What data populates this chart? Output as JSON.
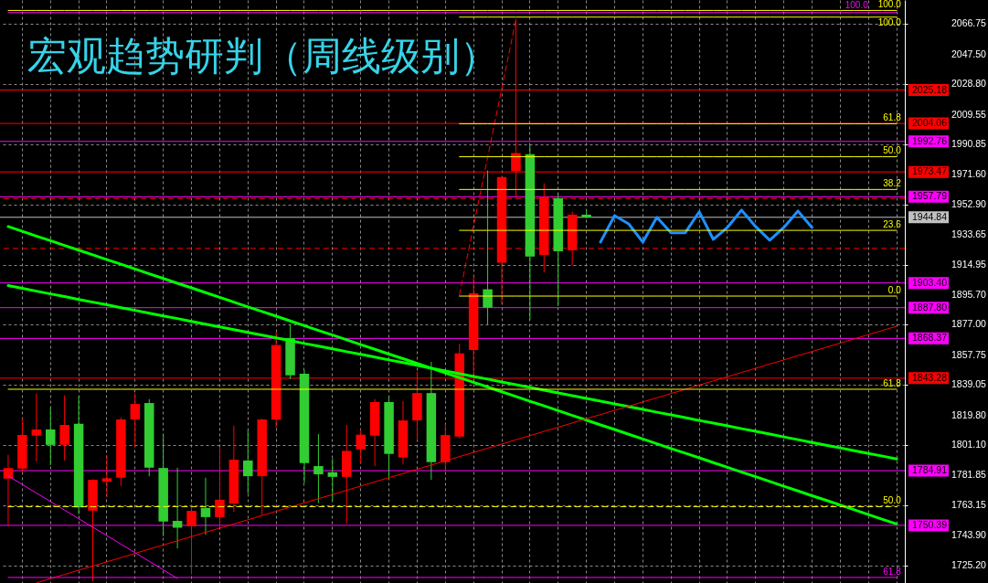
{
  "chart_data": {
    "type": "candlestick",
    "title": "宏观趋势研判（周线级别）",
    "categories": [
      null,
      null,
      null,
      null,
      null,
      null,
      null,
      null,
      null,
      null,
      null,
      null,
      null,
      null,
      null,
      null,
      null,
      null,
      null,
      null,
      null,
      null,
      null,
      null,
      null,
      null,
      null,
      null,
      null,
      null,
      null,
      null,
      null,
      null,
      null,
      null,
      null,
      null,
      null,
      null,
      null,
      null,
      null,
      null,
      null,
      null,
      null,
      null,
      null,
      null,
      null,
      null,
      null,
      null,
      null,
      null,
      null,
      null,
      null,
      null,
      null,
      null,
      null,
      null
    ],
    "ohlc": [
      [
        1779.9,
        1794.9,
        1749.9,
        1786.6
      ],
      [
        1786.2,
        1818.0,
        1783.9,
        1807.4
      ],
      [
        1807.0,
        1833.6,
        1790.7,
        1810.9
      ],
      [
        1810.9,
        1824.7,
        1788.4,
        1801.2
      ],
      [
        1801.2,
        1832.4,
        1791.3,
        1813.8
      ],
      [
        1814.5,
        1831.7,
        1757.4,
        1761.8
      ],
      [
        1759.7,
        1779.5,
        1715.0,
        1779.1
      ],
      [
        1777.9,
        1794.6,
        1768.2,
        1780.1
      ],
      [
        1780.5,
        1818.5,
        1775.3,
        1817.2
      ],
      [
        1817.2,
        1833.6,
        1799.9,
        1827.0
      ],
      [
        1827.6,
        1830.1,
        1781.4,
        1786.8
      ],
      [
        1786.6,
        1808.0,
        1743.5,
        1752.8
      ],
      [
        1753.2,
        1786.8,
        1735.8,
        1748.9
      ],
      [
        1749.9,
        1763.7,
        1719.5,
        1759.5
      ],
      [
        1761.4,
        1780.5,
        1744.5,
        1755.6
      ],
      [
        1755.6,
        1799.9,
        1749.3,
        1766.6
      ],
      [
        1764.1,
        1813.4,
        1758.9,
        1791.8
      ],
      [
        1791.3,
        1810.5,
        1770.5,
        1781.4
      ],
      [
        1781.4,
        1817.8,
        1757.0,
        1817.2
      ],
      [
        1817.1,
        1872.5,
        1811.9,
        1864.2
      ],
      [
        1868.6,
        1877.3,
        1842.6,
        1845.1
      ],
      [
        1846.1,
        1848.4,
        1777.2,
        1789.7
      ],
      [
        1787.8,
        1808.0,
        1764.5,
        1782.6
      ],
      [
        1783.9,
        1792.6,
        1765.9,
        1781.0
      ],
      [
        1781.0,
        1813.8,
        1751.4,
        1797.4
      ],
      [
        1798.4,
        1810.9,
        1789.7,
        1807.6
      ],
      [
        1807.0,
        1830.1,
        1787.8,
        1828.2
      ],
      [
        1828.2,
        1831.7,
        1781.0,
        1795.5
      ],
      [
        1793.2,
        1828.9,
        1788.8,
        1816.6
      ],
      [
        1816.6,
        1847.4,
        1804.1,
        1833.9
      ],
      [
        1833.9,
        1853.6,
        1779.1,
        1790.3
      ],
      [
        1790.3,
        1814.3,
        1783.9,
        1807.4
      ],
      [
        1806.4,
        1865.1,
        1805.1,
        1858.9
      ],
      [
        1861.1,
        1908.0,
        1845.5,
        1896.9
      ],
      [
        1899.4,
        1974.4,
        1877.3,
        1887.8
      ],
      [
        1916.1,
        1970.5,
        1889.8,
        1970.2
      ],
      [
        1974.0,
        2069.8,
        1958.1,
        1985.4
      ],
      [
        1984.6,
        1990.2,
        1880.2,
        1920.1
      ],
      [
        1921.1,
        1966.3,
        1910.0,
        1957.7
      ],
      [
        1956.9,
        1960.0,
        1888.8,
        1923.4
      ],
      [
        1924.0,
        1948.4,
        1914.4,
        1946.5
      ],
      [
        1946.5,
        1949.4,
        1944.2,
        1944.8
      ],
      null,
      null,
      null,
      null,
      null,
      null,
      null,
      null,
      null,
      null,
      null,
      null,
      null,
      null,
      null,
      null,
      null,
      null,
      null,
      null,
      null,
      null
    ],
    "colors": [
      "#ff0000",
      "#ff0000",
      "#ff0000",
      "#32cd32",
      "#ff0000",
      "#32cd32",
      "#ff0000",
      "#ff0000",
      "#ff0000",
      "#ff0000",
      "#32cd32",
      "#32cd32",
      "#32cd32",
      "#ff0000",
      "#32cd32",
      "#ff0000",
      "#ff0000",
      "#32cd32",
      "#ff0000",
      "#ff0000",
      "#32cd32",
      "#32cd32",
      "#32cd32",
      "#32cd32",
      "#ff0000",
      "#ff0000",
      "#ff0000",
      "#32cd32",
      "#ff0000",
      "#ff0000",
      "#32cd32",
      "#ff0000",
      "#ff0000",
      "#ff0000",
      "#32cd32",
      "#ff0000",
      "#ff0000",
      "#32cd32",
      "#ff0000",
      "#32cd32",
      "#ff0000",
      "#32cd32",
      null,
      null,
      null,
      null,
      null,
      null,
      null,
      null,
      null,
      null,
      null,
      null,
      null,
      null,
      null,
      null,
      null,
      null,
      null,
      null,
      null,
      null
    ],
    "series": [
      {
        "type": "line",
        "color": "#00ff00",
        "values": [
          1939.0,
          1936.0,
          1933.0,
          1930.1,
          1927.1,
          1924.1,
          1921.1,
          1918.1,
          1915.2,
          1912.2,
          1909.2,
          1906.2,
          1903.2,
          1900.3,
          1897.3,
          1894.3,
          1891.3,
          1888.3,
          1885.4,
          1882.4,
          1879.4,
          1876.4,
          1873.4,
          1870.5,
          1867.5,
          1864.5,
          1861.5,
          1858.5,
          1855.6,
          1852.6,
          1849.6,
          1846.6,
          1843.6,
          1840.7,
          1837.7,
          1834.7,
          1831.7,
          1828.7,
          1825.8,
          1822.8,
          1819.8,
          1816.8,
          1813.8,
          1810.9,
          1807.9,
          1804.9,
          1801.9,
          1798.9,
          1796.0,
          1793.0,
          1790.0,
          1787.0,
          1784.0,
          1781.1,
          1778.1,
          1775.1,
          1772.1,
          1769.1,
          1766.2,
          1763.2,
          1760.2,
          1757.2,
          1754.2,
          1751.3
        ]
      },
      {
        "type": "line",
        "color": "#00ff00",
        "values": [
          1901.7,
          1900.0,
          1898.2,
          1896.5,
          1894.8,
          1893.0,
          1891.3,
          1889.6,
          1887.8,
          1886.1,
          1884.3,
          1882.6,
          1880.9,
          1879.1,
          1877.4,
          1875.7,
          1873.9,
          1872.2,
          1870.5,
          1868.7,
          1867.0,
          1865.2,
          1863.5,
          1861.8,
          1860.0,
          1858.3,
          1856.6,
          1854.8,
          1853.1,
          1851.4,
          1849.6,
          1847.9,
          1846.1,
          1844.4,
          1842.7,
          1840.9,
          1839.2,
          1837.5,
          1835.7,
          1834.0,
          1832.3,
          1830.5,
          1828.8,
          1827.1,
          1825.3,
          1823.6,
          1821.8,
          1820.1,
          1818.4,
          1816.6,
          1814.9,
          1813.2,
          1811.4,
          1809.7,
          1808.0,
          1806.2,
          1804.5,
          1802.7,
          1801.0,
          1799.3,
          1797.5,
          1795.8,
          1794.1,
          1792.3
        ]
      },
      {
        "type": "line",
        "color": "#ff0000",
        "values": [
          null,
          null,
          1714.1,
          1716.8,
          1719.4,
          1722.1,
          1724.7,
          1727.4,
          1730.0,
          1732.7,
          1735.4,
          1738.0,
          1740.7,
          1743.3,
          1746.0,
          1748.6,
          1751.3,
          1753.9,
          1756.6,
          1759.2,
          1761.9,
          1764.6,
          1767.2,
          1769.9,
          1772.5,
          1775.2,
          1777.8,
          1780.5,
          1783.1,
          1785.8,
          1788.5,
          1791.1,
          1793.8,
          1796.4,
          1799.1,
          1801.7,
          1804.4,
          1807.0,
          1809.7,
          1812.3,
          1815.0,
          1817.7,
          1820.3,
          1823.0,
          1825.6,
          1828.3,
          1830.9,
          1833.6,
          1836.2,
          1838.9,
          1841.6,
          1844.2,
          1846.9,
          1849.5,
          1852.2,
          1854.8,
          1857.5,
          1860.1,
          1862.8,
          1865.4,
          1868.1,
          1870.8,
          1873.4,
          1876.1
        ]
      },
      {
        "type": "line",
        "color": "#ff0000",
        "line_style": "dashed",
        "values": [
          null,
          null,
          null,
          null,
          null,
          null,
          null,
          null,
          null,
          null,
          null,
          null,
          null,
          null,
          null,
          null,
          null,
          null,
          null,
          null,
          null,
          null,
          null,
          null,
          null,
          null,
          null,
          null,
          null,
          null,
          null,
          null,
          1895.9,
          1939.4,
          1982.8,
          2026.2,
          2069.6,
          null,
          null,
          null,
          null,
          null,
          null,
          null,
          null,
          null,
          null,
          null,
          null,
          null,
          null,
          null,
          null,
          null,
          null,
          null,
          null,
          null,
          null,
          null,
          null,
          null,
          null,
          null
        ]
      },
      {
        "type": "line",
        "color": "#ff00ff",
        "values": [
          1781.6,
          1776.2,
          1770.8,
          1765.4,
          1760.0,
          1754.6,
          1749.2,
          1743.9,
          1738.5,
          1733.1,
          1727.7,
          1722.3,
          1716.9,
          null,
          null,
          null,
          null,
          null,
          null,
          null,
          null,
          null,
          null,
          null,
          null,
          null,
          null,
          null,
          null,
          null,
          null,
          null,
          null,
          null,
          null,
          null,
          null,
          null,
          null,
          null,
          null,
          null,
          null,
          null,
          null,
          null,
          null,
          null,
          null,
          null,
          null,
          null,
          null,
          null,
          null,
          null,
          null,
          null,
          null,
          null,
          null,
          null,
          null,
          null
        ]
      },
      {
        "type": "line",
        "color": "#1e90ff",
        "values": [
          null,
          null,
          null,
          null,
          null,
          null,
          null,
          null,
          null,
          null,
          null,
          null,
          null,
          null,
          null,
          null,
          null,
          null,
          null,
          null,
          null,
          null,
          null,
          null,
          null,
          null,
          null,
          null,
          null,
          null,
          null,
          null,
          null,
          null,
          null,
          null,
          null,
          null,
          null,
          null,
          null,
          null,
          1929.2,
          1945.9,
          1940.7,
          1929.2,
          1944.8,
          1935.0,
          1935.0,
          1948.3,
          1930.9,
          1938.4,
          1949.4,
          1939.0,
          1930.4,
          1938.4,
          1948.8,
          1938.4,
          null,
          null,
          null,
          null,
          null,
          null
        ]
      },
      {
        "type": "line",
        "name": "100.0",
        "color": "#ffff00",
        "values": [
          2075.4,
          2075.4,
          2075.4,
          2075.4,
          2075.4,
          2075.4,
          2075.4,
          2075.4,
          2075.4,
          2075.4,
          2075.4,
          2075.4,
          2075.4,
          2075.4,
          2075.4,
          2075.4,
          2075.4,
          2075.4,
          2075.4,
          2075.4,
          2075.4,
          2075.4,
          2075.4,
          2075.4,
          2075.4,
          2075.4,
          2075.4,
          2075.4,
          2075.4,
          2075.4,
          2075.4,
          2075.4,
          2075.4,
          2075.4,
          2075.4,
          2075.4,
          2075.4,
          2075.4,
          2075.4,
          2075.4,
          2075.4,
          2075.4,
          2075.4,
          2075.4,
          2075.4,
          2075.4,
          2075.4,
          2075.4,
          2075.4,
          2075.4,
          2075.4,
          2075.4,
          2075.4,
          2075.4,
          2075.4,
          2075.4,
          2075.4,
          2075.4,
          2075.4,
          2075.4,
          2075.4,
          2075.4,
          2075.4,
          2075.4
        ]
      },
      {
        "type": "line",
        "name": "100.0",
        "color": "#ff00ff",
        "values": [
          2074.1,
          2074.1,
          2074.1,
          2074.1,
          2074.1,
          2074.1,
          2074.1,
          2074.1,
          2074.1,
          2074.1,
          2074.1,
          2074.1,
          2074.1,
          2074.1,
          2074.1,
          2074.1,
          2074.1,
          2074.1,
          2074.1,
          2074.1,
          2074.1,
          2074.1,
          2074.1,
          2074.1,
          2074.1,
          2074.1,
          2074.1,
          2074.1,
          2074.1,
          2074.1,
          2074.1,
          2074.1,
          2074.1,
          2074.1,
          2074.1,
          2074.1,
          2074.1,
          2074.1,
          2074.1,
          2074.1,
          2074.1,
          2074.1,
          2074.1,
          2074.1,
          2074.1,
          2074.1,
          2074.1,
          2074.1,
          2074.1,
          2074.1,
          2074.1,
          2074.1,
          2074.1,
          2074.1,
          2074.1,
          2074.1,
          2074.1,
          2074.1,
          2074.1,
          2074.1,
          2074.1,
          2074.1,
          2074.1,
          2074.1
        ]
      },
      {
        "type": "line",
        "name": "100.0",
        "color": "#ffff00",
        "values": [
          null,
          null,
          null,
          null,
          null,
          null,
          null,
          null,
          null,
          null,
          null,
          null,
          null,
          null,
          null,
          null,
          null,
          null,
          null,
          null,
          null,
          null,
          null,
          null,
          null,
          null,
          null,
          null,
          null,
          null,
          null,
          null,
          2071.2,
          2071.2,
          2071.2,
          2071.2,
          2071.2,
          2071.2,
          2071.2,
          2071.2,
          2071.2,
          2071.2,
          2071.2,
          2071.2,
          2071.2,
          2071.2,
          2071.2,
          2071.2,
          2071.2,
          2071.2,
          2071.2,
          2071.2,
          2071.2,
          2071.2,
          2071.2,
          2071.2,
          2071.2,
          2071.2,
          2071.2,
          2071.2,
          2071.2,
          2071.2,
          2071.2,
          2071.2
        ]
      },
      {
        "type": "line",
        "name": "61.8",
        "color": "#ffff00",
        "values": [
          null,
          null,
          null,
          null,
          null,
          null,
          null,
          null,
          null,
          null,
          null,
          null,
          null,
          null,
          null,
          null,
          null,
          null,
          null,
          null,
          null,
          null,
          null,
          null,
          null,
          null,
          null,
          null,
          null,
          null,
          null,
          null,
          2003.9,
          2003.9,
          2003.9,
          2003.9,
          2003.9,
          2003.9,
          2003.9,
          2003.9,
          2003.9,
          2003.9,
          2003.9,
          2003.9,
          2003.9,
          2003.9,
          2003.9,
          2003.9,
          2003.9,
          2003.9,
          2003.9,
          2003.9,
          2003.9,
          2003.9,
          2003.9,
          2003.9,
          2003.9,
          2003.9,
          2003.9,
          2003.9,
          2003.9,
          2003.9,
          2003.9,
          2003.9
        ]
      },
      {
        "type": "line",
        "name": "50.0",
        "color": "#ffff00",
        "values": [
          null,
          null,
          null,
          null,
          null,
          null,
          null,
          null,
          null,
          null,
          null,
          null,
          null,
          null,
          null,
          null,
          null,
          null,
          null,
          null,
          null,
          null,
          null,
          null,
          null,
          null,
          null,
          null,
          null,
          null,
          null,
          null,
          1983.1,
          1983.1,
          1983.1,
          1983.1,
          1983.1,
          1983.1,
          1983.1,
          1983.1,
          1983.1,
          1983.1,
          1983.1,
          1983.1,
          1983.1,
          1983.1,
          1983.1,
          1983.1,
          1983.1,
          1983.1,
          1983.1,
          1983.1,
          1983.1,
          1983.1,
          1983.1,
          1983.1,
          1983.1,
          1983.1,
          1983.1,
          1983.1,
          1983.1,
          1983.1,
          1983.1,
          1983.1
        ]
      },
      {
        "type": "line",
        "name": "38.2",
        "color": "#ffff00",
        "values": [
          null,
          null,
          null,
          null,
          null,
          null,
          null,
          null,
          null,
          null,
          null,
          null,
          null,
          null,
          null,
          null,
          null,
          null,
          null,
          null,
          null,
          null,
          null,
          null,
          null,
          null,
          null,
          null,
          null,
          null,
          null,
          null,
          1962.4,
          1962.4,
          1962.4,
          1962.4,
          1962.4,
          1962.4,
          1962.4,
          1962.4,
          1962.4,
          1962.4,
          1962.4,
          1962.4,
          1962.4,
          1962.4,
          1962.4,
          1962.4,
          1962.4,
          1962.4,
          1962.4,
          1962.4,
          1962.4,
          1962.4,
          1962.4,
          1962.4,
          1962.4,
          1962.4,
          1962.4,
          1962.4,
          1962.4,
          1962.4,
          1962.4,
          1962.4
        ]
      },
      {
        "type": "line",
        "name": "23.6",
        "color": "#ffff00",
        "values": [
          null,
          null,
          null,
          null,
          null,
          null,
          null,
          null,
          null,
          null,
          null,
          null,
          null,
          null,
          null,
          null,
          null,
          null,
          null,
          null,
          null,
          null,
          null,
          null,
          null,
          null,
          null,
          null,
          null,
          null,
          null,
          null,
          1936.6,
          1936.6,
          1936.6,
          1936.6,
          1936.6,
          1936.6,
          1936.6,
          1936.6,
          1936.6,
          1936.6,
          1936.6,
          1936.6,
          1936.6,
          1936.6,
          1936.6,
          1936.6,
          1936.6,
          1936.6,
          1936.6,
          1936.6,
          1936.6,
          1936.6,
          1936.6,
          1936.6,
          1936.6,
          1936.6,
          1936.6,
          1936.6,
          1936.6,
          1936.6,
          1936.6,
          1936.6
        ]
      },
      {
        "type": "line",
        "name": "0.0",
        "color": "#ffff00",
        "values": [
          null,
          null,
          null,
          null,
          null,
          null,
          null,
          null,
          null,
          null,
          null,
          null,
          null,
          null,
          null,
          null,
          null,
          null,
          null,
          null,
          null,
          null,
          null,
          null,
          null,
          null,
          null,
          null,
          null,
          null,
          null,
          null,
          1895.1,
          1895.1,
          1895.1,
          1895.1,
          1895.1,
          1895.1,
          1895.1,
          1895.1,
          1895.1,
          1895.1,
          1895.1,
          1895.1,
          1895.1,
          1895.1,
          1895.1,
          1895.1,
          1895.1,
          1895.1,
          1895.1,
          1895.1,
          1895.1,
          1895.1,
          1895.1,
          1895.1,
          1895.1,
          1895.1,
          1895.1,
          1895.1,
          1895.1,
          1895.1,
          1895.1,
          1895.1
        ]
      },
      {
        "type": "line",
        "name": "61.8",
        "color": "#ffff00",
        "values": [
          1836.3,
          1836.3,
          1836.3,
          1836.3,
          1836.3,
          1836.3,
          1836.3,
          1836.3,
          1836.3,
          1836.3,
          1836.3,
          1836.3,
          1836.3,
          1836.3,
          1836.3,
          1836.3,
          1836.3,
          1836.3,
          1836.3,
          1836.3,
          1836.3,
          1836.3,
          1836.3,
          1836.3,
          1836.3,
          1836.3,
          1836.3,
          1836.3,
          1836.3,
          1836.3,
          1836.3,
          1836.3,
          1836.3,
          1836.3,
          1836.3,
          1836.3,
          1836.3,
          1836.3,
          1836.3,
          1836.3,
          1836.3,
          1836.3,
          1836.3,
          1836.3,
          1836.3,
          1836.3,
          1836.3,
          1836.3,
          1836.3,
          1836.3,
          1836.3,
          1836.3,
          1836.3,
          1836.3,
          1836.3,
          1836.3,
          1836.3,
          1836.3,
          1836.3,
          1836.3,
          1836.3,
          1836.3,
          1836.3,
          1836.3
        ]
      },
      {
        "type": "line",
        "name": "50.0",
        "color": "#ffff00",
        "line_style": "dashed",
        "values": [
          1762.2,
          1762.2,
          1762.2,
          1762.2,
          1762.2,
          1762.2,
          1762.2,
          1762.2,
          1762.2,
          1762.2,
          1762.2,
          1762.2,
          1762.2,
          1762.2,
          1762.2,
          1762.2,
          1762.2,
          1762.2,
          1762.2,
          1762.2,
          1762.2,
          1762.2,
          1762.2,
          1762.2,
          1762.2,
          1762.2,
          1762.2,
          1762.2,
          1762.2,
          1762.2,
          1762.2,
          1762.2,
          1762.2,
          1762.2,
          1762.2,
          1762.2,
          1762.2,
          1762.2,
          1762.2,
          1762.2,
          1762.2,
          1762.2,
          1762.2,
          1762.2,
          1762.2,
          1762.2,
          1762.2,
          1762.2,
          1762.2,
          1762.2,
          1762.2,
          1762.2,
          1762.2,
          1762.2,
          1762.2,
          1762.2,
          1762.2,
          1762.2,
          1762.2,
          1762.2,
          1762.2,
          1762.2,
          1762.2,
          1762.2
        ]
      },
      {
        "type": "line",
        "name": "61.8",
        "color": "#ff00ff",
        "values": [
          1717.5,
          1717.5,
          1717.5,
          1717.5,
          1717.5,
          1717.5,
          1717.5,
          1717.5,
          1717.5,
          1717.5,
          1717.5,
          1717.5,
          1717.5,
          1717.5,
          1717.5,
          1717.5,
          1717.5,
          1717.5,
          1717.5,
          1717.5,
          1717.5,
          1717.5,
          1717.5,
          1717.5,
          1717.5,
          1717.5,
          1717.5,
          1717.5,
          1717.5,
          1717.5,
          1717.5,
          1717.5,
          1717.5,
          1717.5,
          1717.5,
          1717.5,
          1717.5,
          1717.5,
          1717.5,
          1717.5,
          1717.5,
          1717.5,
          1717.5,
          1717.5,
          1717.5,
          1717.5,
          1717.5,
          1717.5,
          1717.5,
          1717.5,
          1717.5,
          1717.5,
          1717.5,
          1717.5,
          1717.5,
          1717.5,
          1717.5,
          1717.5,
          1717.5,
          1717.5,
          1717.5,
          1717.5,
          1717.5,
          1717.5
        ]
      }
    ],
    "ref_lines": [
      {
        "axis": "y",
        "value": 2025.18,
        "label": "2025.18",
        "color": "#ff0000"
      },
      {
        "axis": "y",
        "value": 2004.06,
        "label": "2004.06",
        "color": "#ff0000"
      },
      {
        "axis": "y",
        "value": 1992.76,
        "label": "1992.76",
        "color": "#ff00ff"
      },
      {
        "axis": "y",
        "value": 1973.47,
        "label": "1973.47",
        "color": "#ff0000"
      },
      {
        "axis": "y",
        "value": 1957.79,
        "label": "1957.79",
        "color": "#ff00ff"
      },
      {
        "axis": "y",
        "value": 1956.7,
        "color": "#ff0000",
        "line_style": "dashed"
      },
      {
        "axis": "y",
        "value": 1944.84,
        "label": "1944.84",
        "color": "#c0c0c0"
      },
      {
        "axis": "y",
        "value": 1925.2,
        "color": "#ff0000",
        "line_style": "dashed"
      },
      {
        "axis": "y",
        "value": 1903.4,
        "label": "1903.40",
        "color": "#ff00ff"
      },
      {
        "axis": "y",
        "value": 1887.8,
        "label": "1887.80",
        "color": "#ff00ff"
      },
      {
        "axis": "y",
        "value": 1868.37,
        "label": "1868.37",
        "color": "#ff00ff"
      },
      {
        "axis": "y",
        "value": 1843.28,
        "label": "1843.28",
        "color": "#ff0000"
      },
      {
        "axis": "y",
        "value": 1784.91,
        "label": "1784.91",
        "color": "#ff00ff"
      },
      {
        "axis": "y",
        "value": 1750.39,
        "label": "1750.39",
        "color": "#ff00ff"
      }
    ],
    "ylim": [
      1714,
      2082
    ],
    "yticks": [
      2066.75,
      {
        "value": 2047.5,
        "label": "2047.50"
      },
      {
        "value": 2028.8,
        "label": "2028.80"
      },
      2009.55,
      1990.85,
      {
        "value": 1971.6,
        "label": "1971.60"
      },
      {
        "value": 1952.9,
        "label": "1952.90"
      },
      1933.65,
      1914.95,
      {
        "value": 1895.7,
        "label": "1895.70"
      },
      {
        "value": 1877,
        "label": "1877.00"
      },
      1857.75,
      1839.05,
      {
        "value": 1819.8,
        "label": "1819.80"
      },
      {
        "value": 1801.1,
        "label": "1801.10"
      },
      1781.85,
      1763.15,
      {
        "value": 1743.9,
        "label": "1743.90"
      },
      {
        "value": 1725.2,
        "label": "1725.20"
      }
    ],
    "grid": true,
    "tick_labels": "y"
  }
}
